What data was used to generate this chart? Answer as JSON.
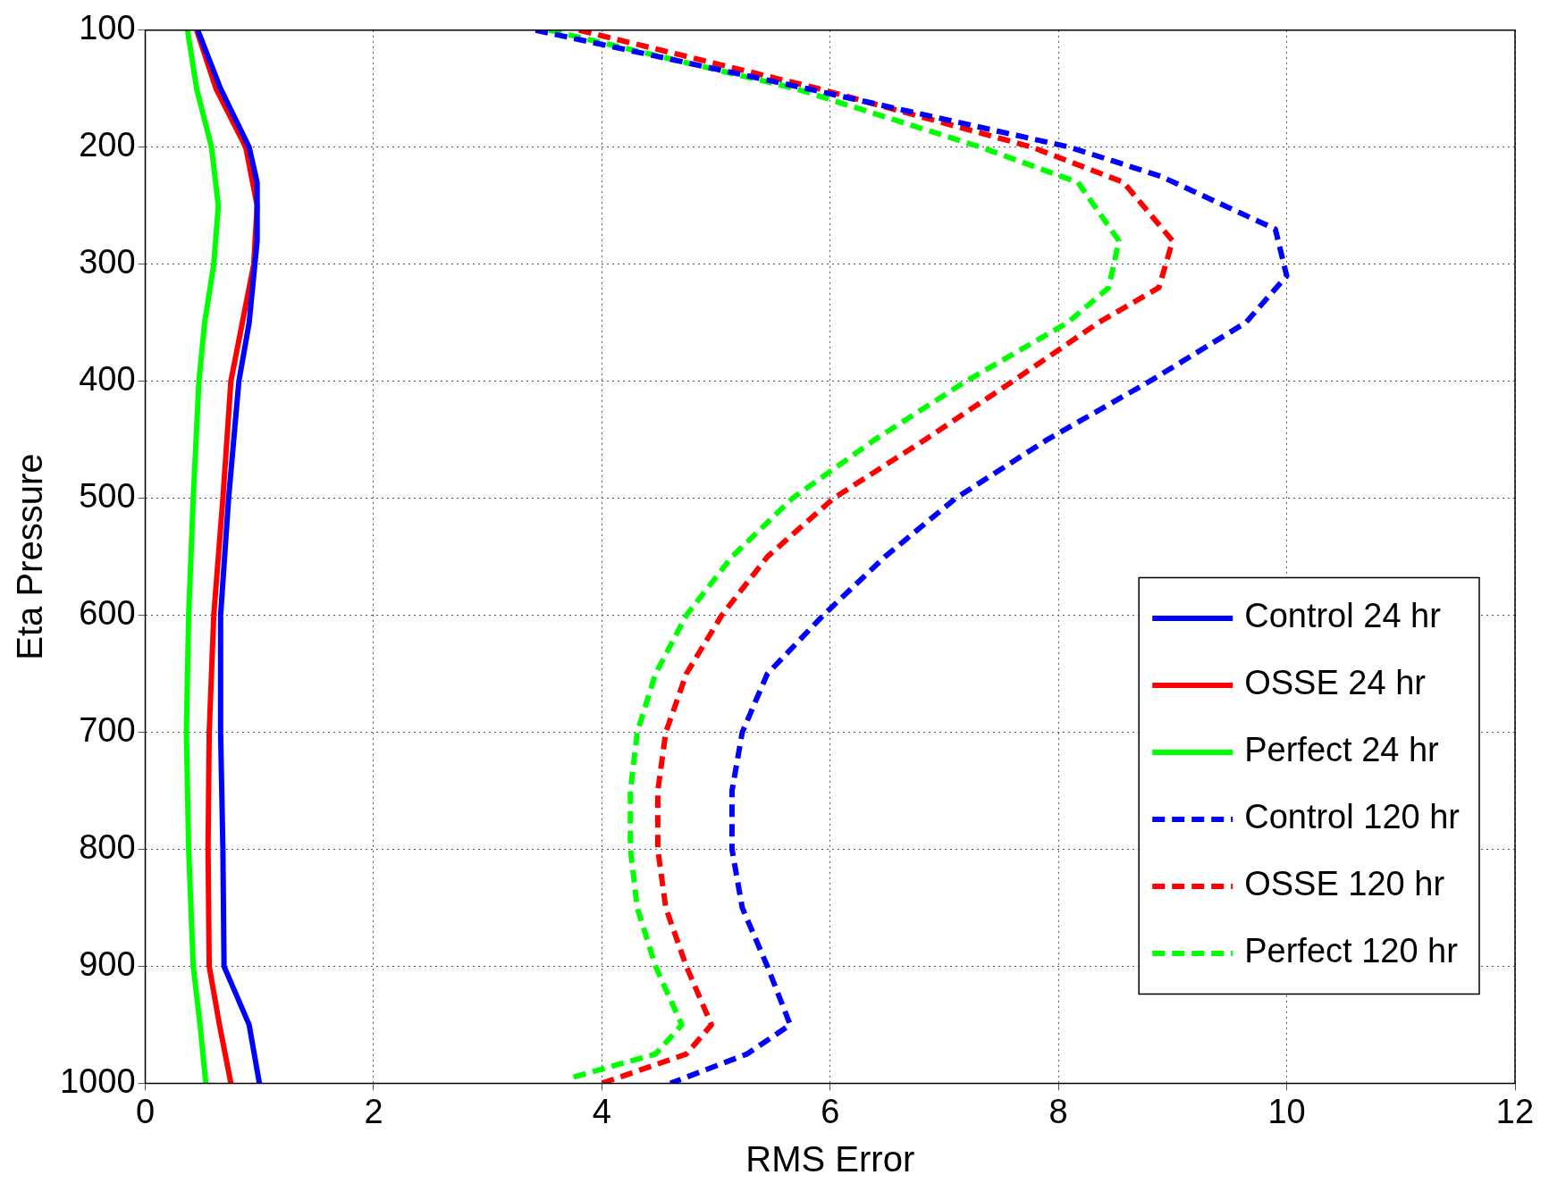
{
  "chart_data": {
    "type": "line",
    "xlabel": "RMS Error",
    "ylabel": "Eta Pressure",
    "xlim": [
      0,
      12
    ],
    "xticks": [
      0,
      2,
      4,
      6,
      8,
      10,
      12
    ],
    "ylim": [
      1000,
      100
    ],
    "yticks": [
      100,
      200,
      300,
      400,
      500,
      600,
      700,
      800,
      900,
      1000
    ],
    "grid": true,
    "legend": "bottom right",
    "marker": "none",
    "series": [
      {
        "name": "Control 24 hr",
        "color": "#0000ff",
        "line_style": "solid",
        "x": [
          0.46,
          0.66,
          0.91,
          0.98,
          0.98,
          0.91,
          0.82,
          0.73,
          0.66,
          0.66,
          0.68,
          0.69,
          0.91,
          1.0
        ],
        "values": [
          100,
          150,
          200,
          230,
          280,
          350,
          400,
          500,
          600,
          700,
          800,
          900,
          950,
          1000
        ]
      },
      {
        "name": "OSSE 24 hr",
        "color": "#ff0000",
        "line_style": "solid",
        "x": [
          0.45,
          0.62,
          0.88,
          0.98,
          0.95,
          0.85,
          0.75,
          0.68,
          0.6,
          0.56,
          0.55,
          0.56,
          0.65,
          0.75
        ],
        "values": [
          100,
          150,
          200,
          250,
          300,
          350,
          400,
          500,
          600,
          700,
          800,
          900,
          950,
          1000
        ]
      },
      {
        "name": "Perfect 24 hr",
        "color": "#00ff00",
        "line_style": "solid",
        "x": [
          0.37,
          0.45,
          0.58,
          0.64,
          0.6,
          0.52,
          0.47,
          0.42,
          0.38,
          0.36,
          0.38,
          0.42,
          0.48,
          0.53
        ],
        "values": [
          100,
          150,
          200,
          250,
          300,
          350,
          400,
          500,
          600,
          700,
          800,
          900,
          950,
          1000
        ]
      },
      {
        "name": "Control 120 hr",
        "color": "#0000ff",
        "line_style": "dashed",
        "x": [
          3.42,
          5.8,
          8.1,
          8.9,
          9.9,
          10.0,
          9.64,
          8.8,
          7.9,
          7.1,
          6.48,
          5.94,
          5.45,
          5.23,
          5.14,
          5.14,
          5.23,
          5.45,
          5.65,
          5.27,
          4.6
        ],
        "values": [
          100,
          150,
          200,
          225,
          270,
          310,
          350,
          400,
          450,
          500,
          550,
          600,
          650,
          700,
          750,
          800,
          850,
          900,
          950,
          975,
          1000
        ]
      },
      {
        "name": "OSSE 120 hr",
        "color": "#ff0000",
        "line_style": "dashed",
        "x": [
          3.8,
          5.9,
          7.77,
          8.57,
          9.0,
          8.88,
          8.35,
          7.6,
          6.83,
          6.03,
          5.45,
          5.05,
          4.74,
          4.56,
          4.49,
          4.49,
          4.56,
          4.74,
          4.96,
          4.74,
          4.0
        ],
        "values": [
          100,
          150,
          200,
          230,
          280,
          320,
          350,
          400,
          450,
          500,
          550,
          600,
          650,
          700,
          750,
          800,
          850,
          900,
          950,
          975,
          1000
        ]
      },
      {
        "name": "Perfect 120 hr",
        "color": "#00ff00",
        "line_style": "dashed",
        "x": [
          3.54,
          5.7,
          7.32,
          8.17,
          8.53,
          8.44,
          8.08,
          7.19,
          6.39,
          5.67,
          5.14,
          4.74,
          4.47,
          4.31,
          4.25,
          4.25,
          4.31,
          4.47,
          4.7,
          4.47,
          3.74
        ],
        "values": [
          100,
          150,
          200,
          230,
          280,
          320,
          350,
          400,
          450,
          500,
          550,
          600,
          650,
          700,
          750,
          800,
          850,
          900,
          950,
          975,
          995
        ]
      }
    ]
  }
}
